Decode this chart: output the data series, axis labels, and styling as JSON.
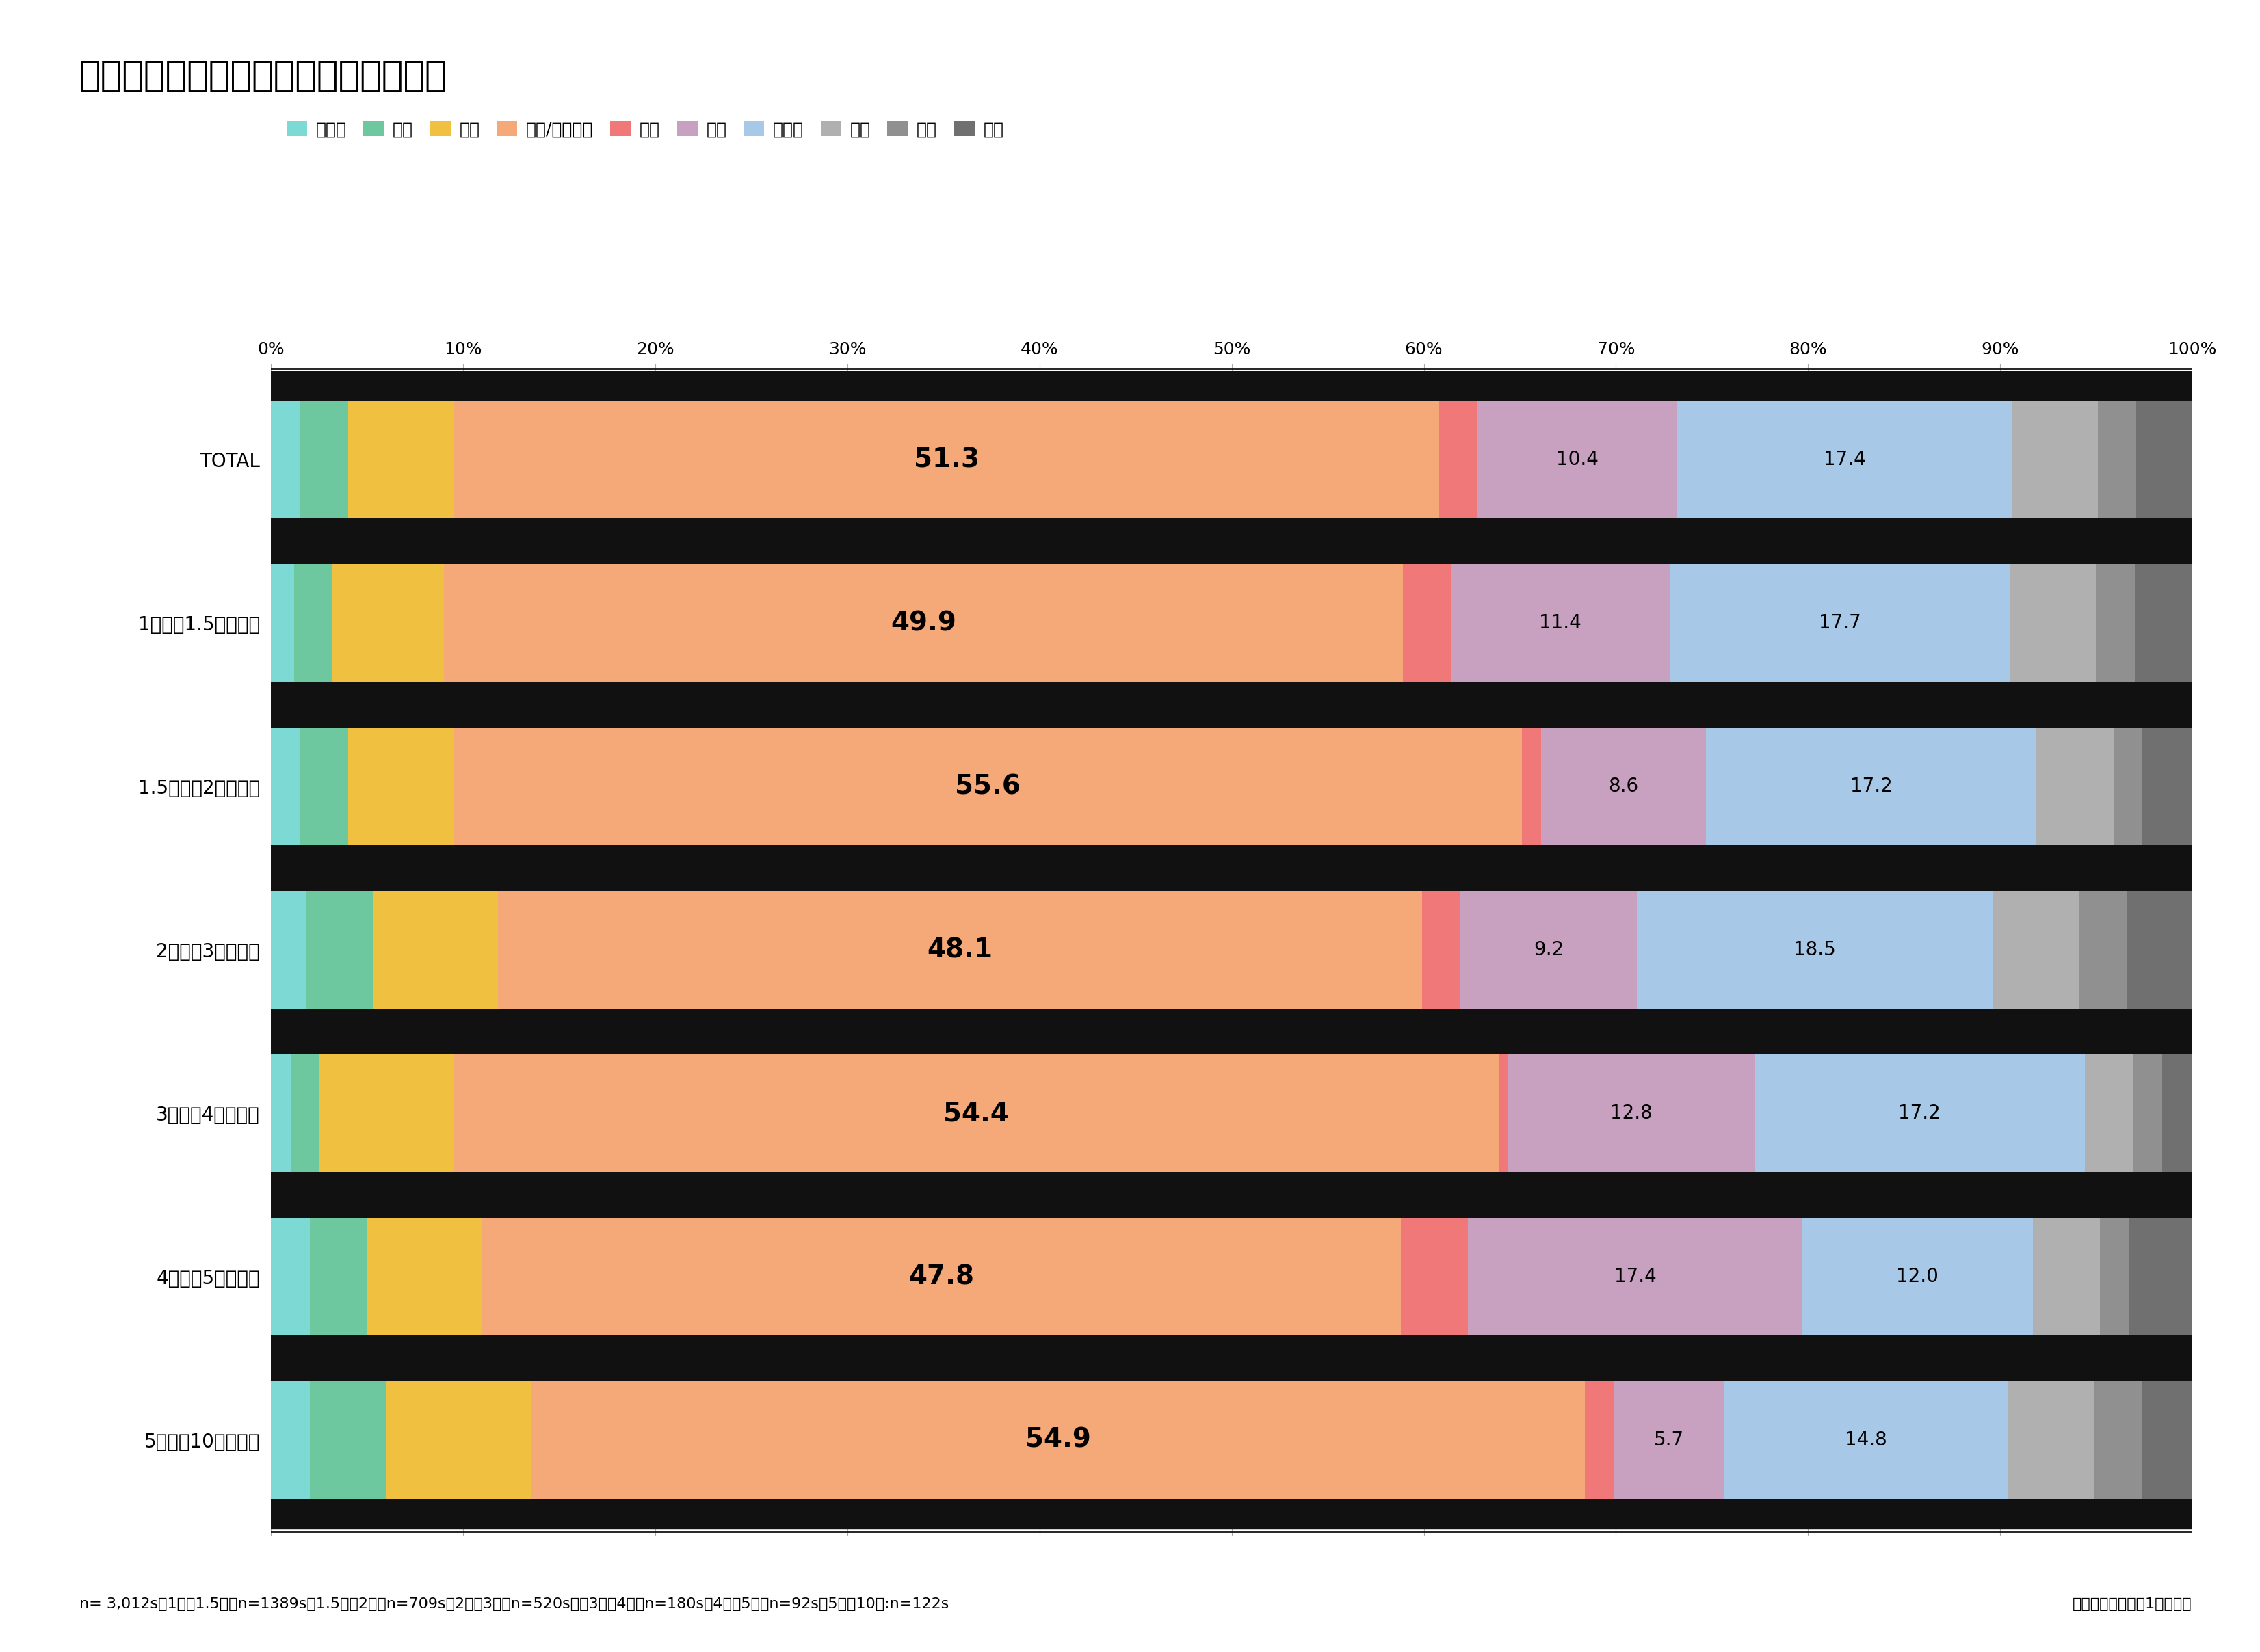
{
  "title": "富裕層調査　回答者の居住エリア構成",
  "categories": [
    "TOTAL",
    "1億円～1.5億円未満",
    "1.5億円～2億円未満",
    "2億円～3億円未満",
    "3億円～4億円未満",
    "4億円～5億円未満",
    "5億円～10億円未満"
  ],
  "segments": [
    "北海道",
    "東北",
    "関東",
    "京浜/一都三県",
    "北陸",
    "東海",
    "京阪神",
    "中国",
    "四国",
    "九州"
  ],
  "colors": [
    "#7dd9d4",
    "#6dc8a0",
    "#f0c040",
    "#f5a878",
    "#f07878",
    "#c8a0c0",
    "#a8c8e8",
    "#b0b0b0",
    "#909090",
    "#707070"
  ],
  "data": [
    [
      1.5,
      2.5,
      5.5,
      51.3,
      2.0,
      10.4,
      17.4,
      4.5,
      2.0,
      2.9
    ],
    [
      1.2,
      2.0,
      5.8,
      49.9,
      2.5,
      11.4,
      17.7,
      4.5,
      2.0,
      3.0
    ],
    [
      1.5,
      2.5,
      5.5,
      55.6,
      1.0,
      8.6,
      17.2,
      4.0,
      1.5,
      2.6
    ],
    [
      1.8,
      3.5,
      6.5,
      48.1,
      2.0,
      9.2,
      18.5,
      4.5,
      2.5,
      3.4
    ],
    [
      1.0,
      1.5,
      7.0,
      54.4,
      0.5,
      12.8,
      17.2,
      2.5,
      1.5,
      1.6
    ],
    [
      2.0,
      3.0,
      6.0,
      47.8,
      3.5,
      17.4,
      12.0,
      3.5,
      1.5,
      3.3
    ],
    [
      2.0,
      4.0,
      7.5,
      54.9,
      1.5,
      5.7,
      14.8,
      4.5,
      2.5,
      2.6
    ]
  ],
  "footnote": "n= 3,012s　1億～1.5億：n=1389s、1.5億～2億：n=709s、2億～3億：n=520s、　3億～4億：n=180s、4億～5億：n=92s、5億～10億:n=122s",
  "footnote2": "ベース：金融資産1億円以上",
  "fig_bg_color": "#ffffff",
  "plot_bg_color": "#ffffff",
  "text_color": "#111111",
  "separator_color": "#111111",
  "grid_color": "#aaaaaa",
  "bar_height": 0.72,
  "xlim": [
    0,
    100
  ],
  "label_fontsize_large": 28,
  "label_fontsize_small": 20,
  "tick_fontsize": 18,
  "ytick_fontsize": 20,
  "title_fontsize": 38,
  "legend_fontsize": 18,
  "footnote_fontsize": 16
}
